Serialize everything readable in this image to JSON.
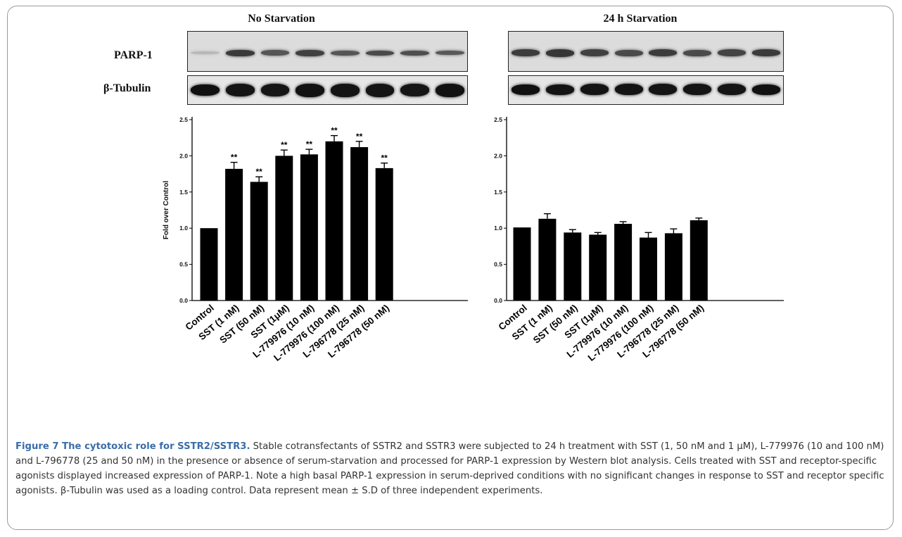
{
  "panels": [
    {
      "title": "No Starvation"
    },
    {
      "title": "24 h Starvation"
    }
  ],
  "blot_labels": {
    "parp": "PARP-1",
    "tubulin": "β-Tubulin"
  },
  "chart_data": [
    {
      "type": "bar",
      "title": "No Starvation",
      "xlabel": "",
      "ylabel": "Fold over Control",
      "ylim": [
        0,
        2.5
      ],
      "yticks": [
        "0.0",
        "0.5",
        "1.0",
        "1.5",
        "2.0",
        "2.5"
      ],
      "categories": [
        "Control",
        "SST (1 nM)",
        "SST (50 nM)",
        "SST (1μM)",
        "L-779976 (10 nM)",
        "L-779976 (100 nM)",
        "L-796778 (25 nM)",
        "L-796778 (50 nM)"
      ],
      "values": [
        1.0,
        1.82,
        1.64,
        2.0,
        2.02,
        2.2,
        2.12,
        1.83
      ],
      "errors": [
        0.0,
        0.09,
        0.07,
        0.08,
        0.07,
        0.08,
        0.08,
        0.07
      ],
      "annotations": [
        "",
        "**",
        "**",
        "**",
        "**",
        "**",
        "**",
        "**"
      ],
      "bar_color": "#000000",
      "grid": false
    },
    {
      "type": "bar",
      "title": "24 h Starvation",
      "xlabel": "",
      "ylabel": "",
      "ylim": [
        0,
        2.5
      ],
      "yticks": [
        "0.0",
        "0.5",
        "1.0",
        "1.5",
        "2.0",
        "2.5"
      ],
      "categories": [
        "Control",
        "SST (1 nM)",
        "SST (50 nM)",
        "SST (1μM)",
        "L-779976 (10 nM)",
        "L-779976 (100 nM)",
        "L-796778 (25 nM)",
        "L-796778 (50 nM)"
      ],
      "values": [
        1.01,
        1.13,
        0.94,
        0.91,
        1.06,
        0.87,
        0.93,
        1.11
      ],
      "errors": [
        0.0,
        0.07,
        0.04,
        0.03,
        0.03,
        0.07,
        0.06,
        0.03
      ],
      "annotations": [
        "",
        "",
        "",
        "",
        "",
        "",
        "",
        ""
      ],
      "bar_color": "#000000",
      "grid": false
    }
  ],
  "caption": {
    "figure_label": "Figure 7 The cytotoxic role for SSTR2/SSTR3.",
    "body": " Stable cotransfectants of SSTR2 and SSTR3 were subjected to 24 h treatment with SST (1, 50 nM and 1 μM), L-779976 (10 and 100 nM) and L-796778 (25 and 50 nM) in the presence or absence of serum-starvation and processed for PARP-1 expression by Western blot analysis. Cells treated with SST and receptor-specific agonists displayed increased expression of PARP-1. Note a high basal PARP-1 expression in serum-deprived conditions with no significant changes in response to SST and receptor specific agonists. β-Tubulin was used as a loading control. Data represent mean ± S.D of three independent experiments."
  }
}
